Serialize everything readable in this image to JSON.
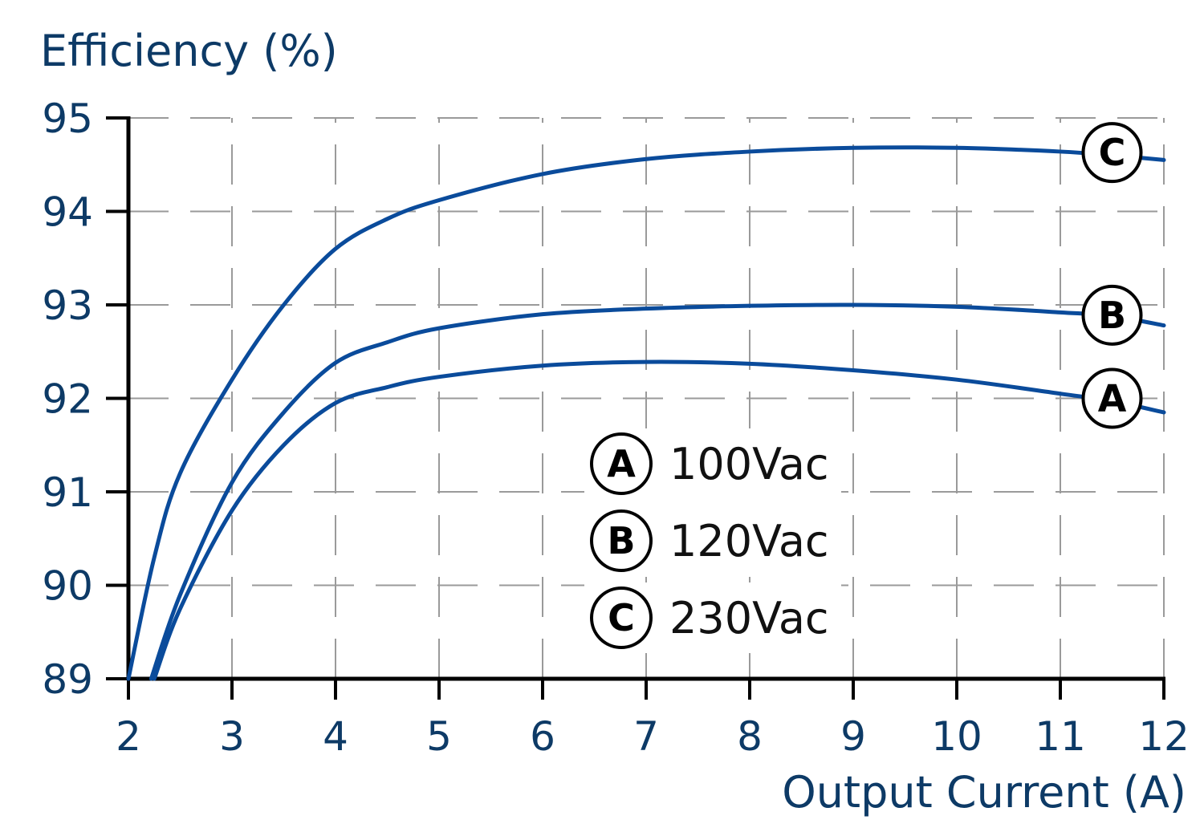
{
  "chart_data": {
    "type": "line",
    "title": "",
    "ylabel": "Efficiency (%)",
    "xlabel": "Output Current (A)",
    "xlim": [
      2,
      12
    ],
    "ylim": [
      89,
      95
    ],
    "x_ticks": [
      2,
      3,
      4,
      5,
      6,
      7,
      8,
      9,
      10,
      11,
      12
    ],
    "y_ticks": [
      89,
      90,
      91,
      92,
      93,
      94,
      95
    ],
    "grid": true,
    "grid_style": "dashed",
    "line_color": "#0a4b9b",
    "legend_position": "inside-center",
    "series": [
      {
        "id": "A",
        "name": "100Vac",
        "label_marker": "A",
        "x": [
          2.25,
          2.5,
          3,
          3.5,
          4,
          4.5,
          5,
          6,
          7,
          8,
          9,
          10,
          11,
          11.5,
          12
        ],
        "values": [
          89.0,
          89.75,
          90.8,
          91.5,
          91.95,
          92.12,
          92.23,
          92.35,
          92.39,
          92.37,
          92.3,
          92.2,
          92.05,
          91.97,
          91.85
        ]
      },
      {
        "id": "B",
        "name": "120Vac",
        "label_marker": "B",
        "x": [
          2.22,
          2.5,
          3,
          3.5,
          4,
          4.5,
          5,
          6,
          7,
          8,
          9,
          10,
          11,
          11.5,
          12
        ],
        "values": [
          89.0,
          89.9,
          91.1,
          91.85,
          92.38,
          92.6,
          92.75,
          92.9,
          92.96,
          92.99,
          93.0,
          92.98,
          92.92,
          92.88,
          92.78
        ]
      },
      {
        "id": "C",
        "name": "230Vac",
        "label_marker": "C",
        "x": [
          2.0,
          2.25,
          2.5,
          3,
          3.5,
          4,
          4.5,
          5,
          6,
          7,
          8,
          9,
          10,
          11,
          11.5,
          12
        ],
        "values": [
          89.0,
          90.3,
          91.2,
          92.2,
          93.0,
          93.6,
          93.92,
          94.12,
          94.4,
          94.56,
          94.64,
          94.68,
          94.68,
          94.64,
          94.6,
          94.55
        ]
      }
    ]
  },
  "labels": {
    "y_axis_title": "Efficiency (%)",
    "x_axis_title": "Output Current (A)"
  },
  "legend": [
    {
      "marker": "A",
      "text": "100Vac"
    },
    {
      "marker": "B",
      "text": "120Vac"
    },
    {
      "marker": "C",
      "text": "230Vac"
    }
  ],
  "inline_markers": [
    {
      "marker": "A",
      "x": 11.5,
      "y": 92.0
    },
    {
      "marker": "B",
      "x": 11.5,
      "y": 92.89
    },
    {
      "marker": "C",
      "x": 11.5,
      "y": 94.63
    }
  ]
}
